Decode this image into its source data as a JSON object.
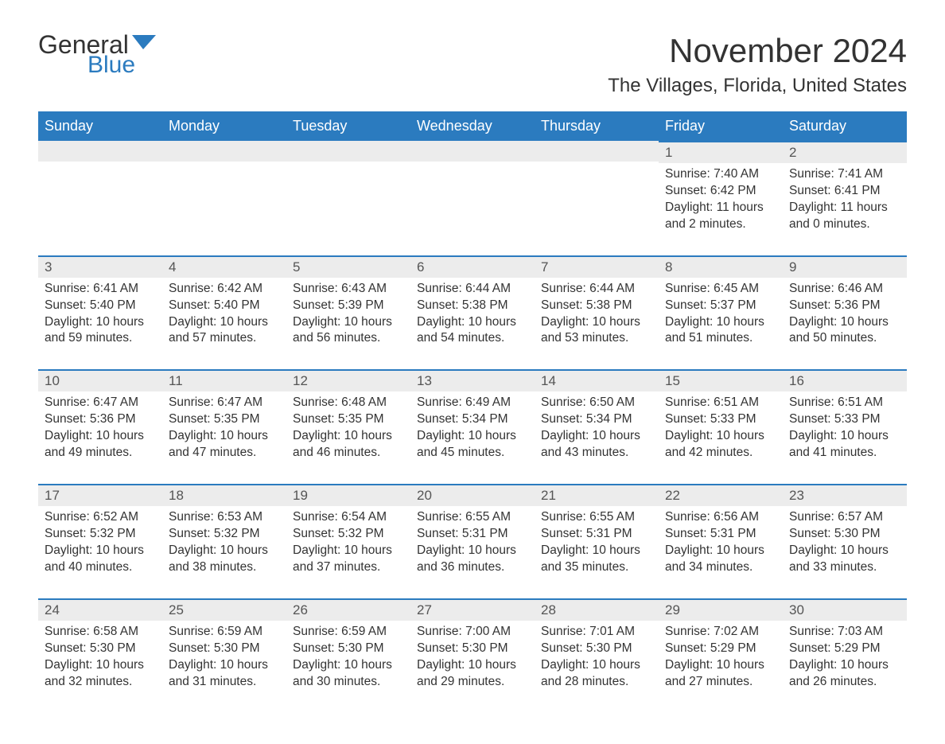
{
  "logo": {
    "general": "General",
    "blue": "Blue"
  },
  "title": "November 2024",
  "location": "The Villages, Florida, United States",
  "colors": {
    "accent": "#2b7bbf",
    "header_bg": "#2b7bbf",
    "header_text": "#ffffff",
    "daynum_bg": "#ececec",
    "body_bg": "#ffffff",
    "text": "#333333"
  },
  "weekdays": [
    "Sunday",
    "Monday",
    "Tuesday",
    "Wednesday",
    "Thursday",
    "Friday",
    "Saturday"
  ],
  "labels": {
    "sunrise": "Sunrise:",
    "sunset": "Sunset:",
    "daylight": "Daylight:"
  },
  "weeks": [
    [
      null,
      null,
      null,
      null,
      null,
      {
        "day": "1",
        "sunrise": "7:40 AM",
        "sunset": "6:42 PM",
        "daylight": "11 hours and 2 minutes."
      },
      {
        "day": "2",
        "sunrise": "7:41 AM",
        "sunset": "6:41 PM",
        "daylight": "11 hours and 0 minutes."
      }
    ],
    [
      {
        "day": "3",
        "sunrise": "6:41 AM",
        "sunset": "5:40 PM",
        "daylight": "10 hours and 59 minutes."
      },
      {
        "day": "4",
        "sunrise": "6:42 AM",
        "sunset": "5:40 PM",
        "daylight": "10 hours and 57 minutes."
      },
      {
        "day": "5",
        "sunrise": "6:43 AM",
        "sunset": "5:39 PM",
        "daylight": "10 hours and 56 minutes."
      },
      {
        "day": "6",
        "sunrise": "6:44 AM",
        "sunset": "5:38 PM",
        "daylight": "10 hours and 54 minutes."
      },
      {
        "day": "7",
        "sunrise": "6:44 AM",
        "sunset": "5:38 PM",
        "daylight": "10 hours and 53 minutes."
      },
      {
        "day": "8",
        "sunrise": "6:45 AM",
        "sunset": "5:37 PM",
        "daylight": "10 hours and 51 minutes."
      },
      {
        "day": "9",
        "sunrise": "6:46 AM",
        "sunset": "5:36 PM",
        "daylight": "10 hours and 50 minutes."
      }
    ],
    [
      {
        "day": "10",
        "sunrise": "6:47 AM",
        "sunset": "5:36 PM",
        "daylight": "10 hours and 49 minutes."
      },
      {
        "day": "11",
        "sunrise": "6:47 AM",
        "sunset": "5:35 PM",
        "daylight": "10 hours and 47 minutes."
      },
      {
        "day": "12",
        "sunrise": "6:48 AM",
        "sunset": "5:35 PM",
        "daylight": "10 hours and 46 minutes."
      },
      {
        "day": "13",
        "sunrise": "6:49 AM",
        "sunset": "5:34 PM",
        "daylight": "10 hours and 45 minutes."
      },
      {
        "day": "14",
        "sunrise": "6:50 AM",
        "sunset": "5:34 PM",
        "daylight": "10 hours and 43 minutes."
      },
      {
        "day": "15",
        "sunrise": "6:51 AM",
        "sunset": "5:33 PM",
        "daylight": "10 hours and 42 minutes."
      },
      {
        "day": "16",
        "sunrise": "6:51 AM",
        "sunset": "5:33 PM",
        "daylight": "10 hours and 41 minutes."
      }
    ],
    [
      {
        "day": "17",
        "sunrise": "6:52 AM",
        "sunset": "5:32 PM",
        "daylight": "10 hours and 40 minutes."
      },
      {
        "day": "18",
        "sunrise": "6:53 AM",
        "sunset": "5:32 PM",
        "daylight": "10 hours and 38 minutes."
      },
      {
        "day": "19",
        "sunrise": "6:54 AM",
        "sunset": "5:32 PM",
        "daylight": "10 hours and 37 minutes."
      },
      {
        "day": "20",
        "sunrise": "6:55 AM",
        "sunset": "5:31 PM",
        "daylight": "10 hours and 36 minutes."
      },
      {
        "day": "21",
        "sunrise": "6:55 AM",
        "sunset": "5:31 PM",
        "daylight": "10 hours and 35 minutes."
      },
      {
        "day": "22",
        "sunrise": "6:56 AM",
        "sunset": "5:31 PM",
        "daylight": "10 hours and 34 minutes."
      },
      {
        "day": "23",
        "sunrise": "6:57 AM",
        "sunset": "5:30 PM",
        "daylight": "10 hours and 33 minutes."
      }
    ],
    [
      {
        "day": "24",
        "sunrise": "6:58 AM",
        "sunset": "5:30 PM",
        "daylight": "10 hours and 32 minutes."
      },
      {
        "day": "25",
        "sunrise": "6:59 AM",
        "sunset": "5:30 PM",
        "daylight": "10 hours and 31 minutes."
      },
      {
        "day": "26",
        "sunrise": "6:59 AM",
        "sunset": "5:30 PM",
        "daylight": "10 hours and 30 minutes."
      },
      {
        "day": "27",
        "sunrise": "7:00 AM",
        "sunset": "5:30 PM",
        "daylight": "10 hours and 29 minutes."
      },
      {
        "day": "28",
        "sunrise": "7:01 AM",
        "sunset": "5:30 PM",
        "daylight": "10 hours and 28 minutes."
      },
      {
        "day": "29",
        "sunrise": "7:02 AM",
        "sunset": "5:29 PM",
        "daylight": "10 hours and 27 minutes."
      },
      {
        "day": "30",
        "sunrise": "7:03 AM",
        "sunset": "5:29 PM",
        "daylight": "10 hours and 26 minutes."
      }
    ]
  ]
}
